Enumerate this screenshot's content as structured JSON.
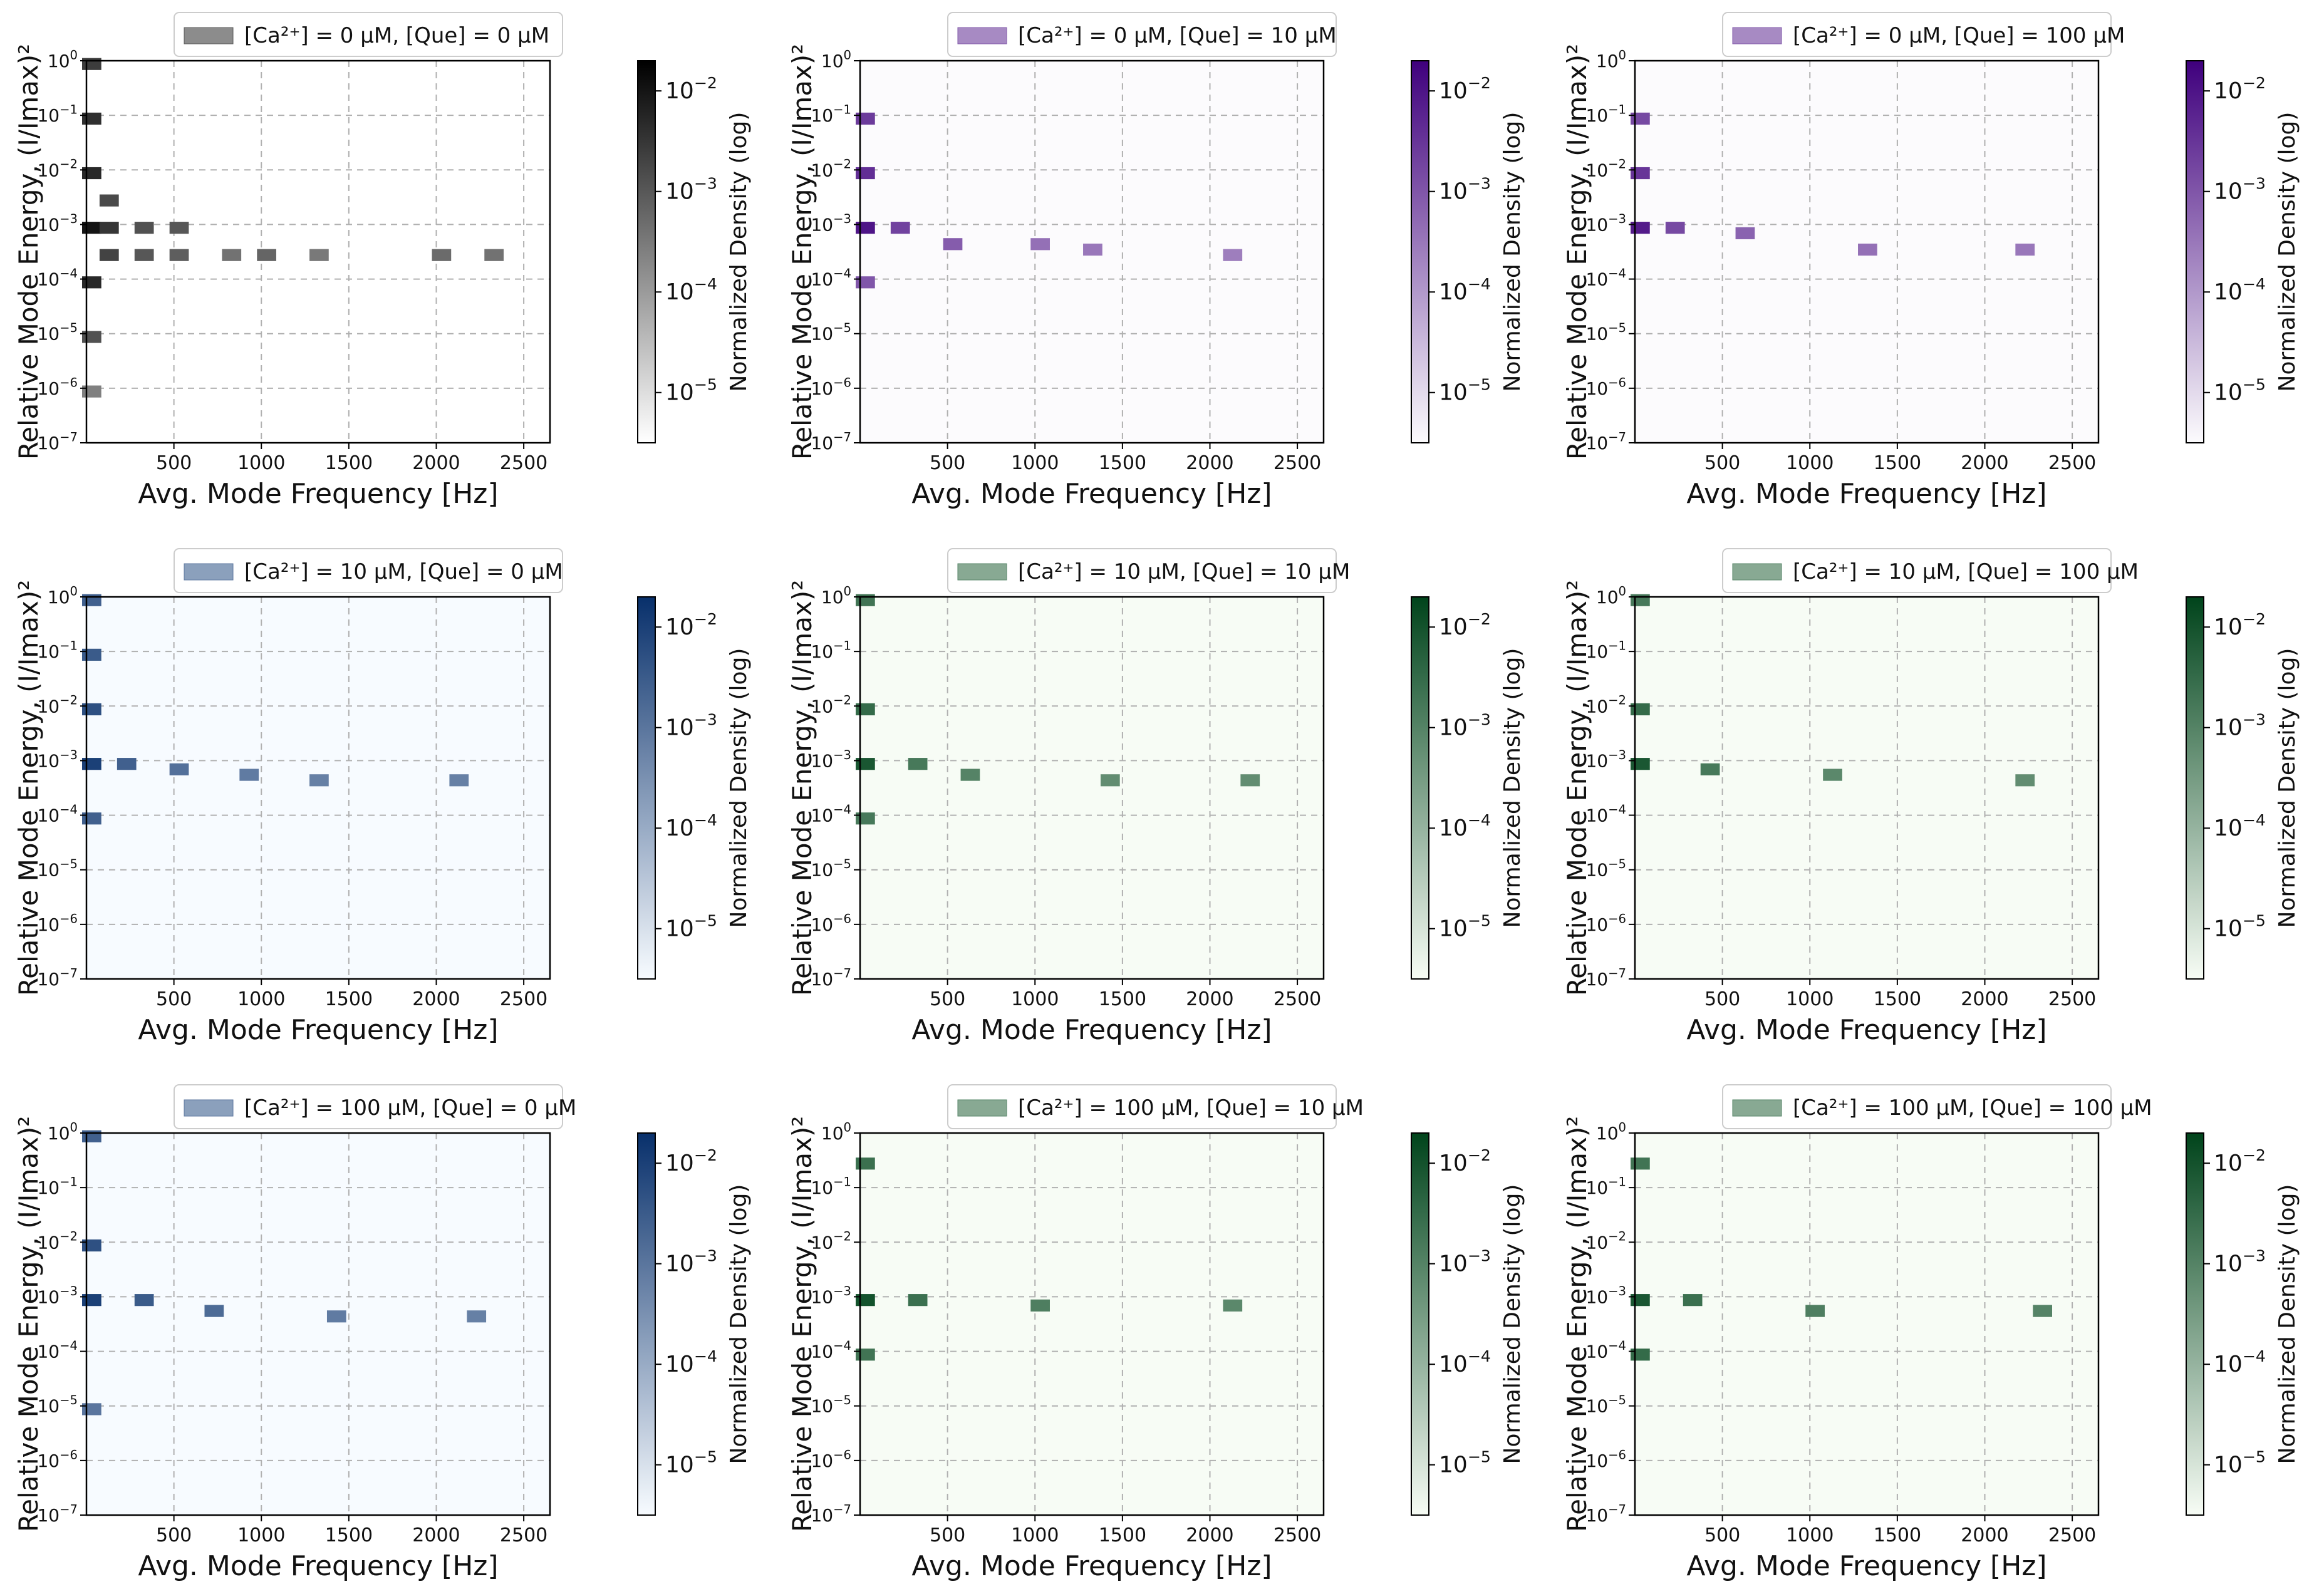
{
  "figure": {
    "layout": "3x3 grid of 2D histograms",
    "shared": {
      "xlabel": "Avg. Mode Frequency [Hz]",
      "ylabel": "Relative Mode Energy, (I/Imax)²",
      "colorbar_label": "Normalized Density (log)",
      "x_ticks": [
        500,
        1000,
        1500,
        2000,
        2500
      ],
      "y_tick_exponents": [
        -7,
        -6,
        -5,
        -4,
        -3,
        -2,
        -1,
        0
      ],
      "colorbar_tick_exponents": [
        -5,
        -4,
        -3,
        -2
      ]
    }
  },
  "chart_data": [
    {
      "type": "heatmap",
      "legend": "[Ca²⁺] = 0 μM, [Que] = 0 μM",
      "xlabel": "Avg. Mode Frequency [Hz]",
      "ylabel": "Relative Mode Energy, (I/Imax)²",
      "xlim": [
        0,
        2650
      ],
      "ylim_log10": [
        -7,
        0
      ],
      "clim_log10": [
        -5.5,
        -1.7
      ],
      "colormap": "Greys",
      "cmap_low": "#ffffff",
      "cmap_high": "#000000",
      "cells": [
        {
          "x": 0,
          "y": 0,
          "log_density": -2.6
        },
        {
          "x": 0,
          "y": -1,
          "log_density": -2.4
        },
        {
          "x": 0,
          "y": -2,
          "log_density": -2.3
        },
        {
          "x": 0,
          "y": -3,
          "log_density": -2.0
        },
        {
          "x": 0,
          "y": -4,
          "log_density": -2.3
        },
        {
          "x": 0,
          "y": -5,
          "log_density": -2.9
        },
        {
          "x": 0,
          "y": -6,
          "log_density": -3.6
        },
        {
          "x": 100,
          "y": -2.5,
          "log_density": -2.8
        },
        {
          "x": 100,
          "y": -3,
          "log_density": -2.5
        },
        {
          "x": 100,
          "y": -3.5,
          "log_density": -2.7
        },
        {
          "x": 300,
          "y": -3,
          "log_density": -2.9
        },
        {
          "x": 300,
          "y": -3.5,
          "log_density": -3.0
        },
        {
          "x": 500,
          "y": -3,
          "log_density": -3.0
        },
        {
          "x": 500,
          "y": -3.5,
          "log_density": -3.1
        },
        {
          "x": 800,
          "y": -3.5,
          "log_density": -3.4
        },
        {
          "x": 1000,
          "y": -3.5,
          "log_density": -3.2
        },
        {
          "x": 1300,
          "y": -3.5,
          "log_density": -3.5
        },
        {
          "x": 2000,
          "y": -3.5,
          "log_density": -3.3
        },
        {
          "x": 2300,
          "y": -3.5,
          "log_density": -3.4
        }
      ]
    },
    {
      "type": "heatmap",
      "legend": "[Ca²⁺] = 0 μM, [Que] = 10 μM",
      "xlabel": "Avg. Mode Frequency [Hz]",
      "ylabel": "Relative Mode Energy, (I/Imax)²",
      "xlim": [
        0,
        2650
      ],
      "ylim_log10": [
        -7,
        0
      ],
      "clim_log10": [
        -5.5,
        -1.7
      ],
      "colormap": "Purples",
      "cmap_low": "#fcfbfd",
      "cmap_high": "#3f007d",
      "cells": [
        {
          "x": 0,
          "y": -1,
          "log_density": -2.6
        },
        {
          "x": 0,
          "y": -2,
          "log_density": -2.4
        },
        {
          "x": 0,
          "y": -3,
          "log_density": -2.0
        },
        {
          "x": 0,
          "y": -4,
          "log_density": -3.0
        },
        {
          "x": 200,
          "y": -3,
          "log_density": -2.7
        },
        {
          "x": 500,
          "y": -3.3,
          "log_density": -3.1
        },
        {
          "x": 1000,
          "y": -3.3,
          "log_density": -3.4
        },
        {
          "x": 1300,
          "y": -3.4,
          "log_density": -3.5
        },
        {
          "x": 2100,
          "y": -3.5,
          "log_density": -3.6
        }
      ]
    },
    {
      "type": "heatmap",
      "legend": "[Ca²⁺] = 0 μM, [Que] = 100 μM",
      "xlabel": "Avg. Mode Frequency [Hz]",
      "ylabel": "Relative Mode Energy, (I/Imax)²",
      "xlim": [
        0,
        2650
      ],
      "ylim_log10": [
        -7,
        0
      ],
      "clim_log10": [
        -5.5,
        -1.7
      ],
      "colormap": "Purples",
      "cmap_low": "#fcfbfd",
      "cmap_high": "#3f007d",
      "cells": [
        {
          "x": 0,
          "y": -1,
          "log_density": -2.8
        },
        {
          "x": 0,
          "y": -2,
          "log_density": -2.5
        },
        {
          "x": 0,
          "y": -3,
          "log_density": -2.1
        },
        {
          "x": 200,
          "y": -3,
          "log_density": -2.8
        },
        {
          "x": 600,
          "y": -3.1,
          "log_density": -3.2
        },
        {
          "x": 1300,
          "y": -3.4,
          "log_density": -3.4
        },
        {
          "x": 2200,
          "y": -3.4,
          "log_density": -3.5
        }
      ]
    },
    {
      "type": "heatmap",
      "legend": "[Ca²⁺] = 10 μM, [Que] = 0 μM",
      "xlabel": "Avg. Mode Frequency [Hz]",
      "ylabel": "Relative Mode Energy, (I/Imax)²",
      "xlim": [
        0,
        2650
      ],
      "ylim_log10": [
        -7,
        0
      ],
      "clim_log10": [
        -5.5,
        -1.7
      ],
      "colormap": "Blues",
      "cmap_low": "#f7fbff",
      "cmap_high": "#08306b",
      "cells": [
        {
          "x": 0,
          "y": 0,
          "log_density": -2.6
        },
        {
          "x": 0,
          "y": -1,
          "log_density": -2.5
        },
        {
          "x": 0,
          "y": -2,
          "log_density": -2.3
        },
        {
          "x": 0,
          "y": -3,
          "log_density": -2.0
        },
        {
          "x": 0,
          "y": -4,
          "log_density": -2.6
        },
        {
          "x": 200,
          "y": -3,
          "log_density": -2.6
        },
        {
          "x": 500,
          "y": -3.1,
          "log_density": -2.9
        },
        {
          "x": 900,
          "y": -3.2,
          "log_density": -3.1
        },
        {
          "x": 1300,
          "y": -3.3,
          "log_density": -3.2
        },
        {
          "x": 2100,
          "y": -3.3,
          "log_density": -3.2
        }
      ]
    },
    {
      "type": "heatmap",
      "legend": "[Ca²⁺] = 10 μM, [Que] = 10 μM",
      "xlabel": "Avg. Mode Frequency [Hz]",
      "ylabel": "Relative Mode Energy, (I/Imax)²",
      "xlim": [
        0,
        2650
      ],
      "ylim_log10": [
        -7,
        0
      ],
      "clim_log10": [
        -5.5,
        -1.7
      ],
      "colormap": "Greens",
      "cmap_low": "#f7fcf5",
      "cmap_high": "#00441b",
      "cells": [
        {
          "x": 0,
          "y": 0,
          "log_density": -2.7
        },
        {
          "x": 0,
          "y": -2,
          "log_density": -2.5
        },
        {
          "x": 0,
          "y": -3,
          "log_density": -2.1
        },
        {
          "x": 0,
          "y": -4,
          "log_density": -2.8
        },
        {
          "x": 300,
          "y": -3,
          "log_density": -2.8
        },
        {
          "x": 600,
          "y": -3.2,
          "log_density": -3.0
        },
        {
          "x": 1400,
          "y": -3.3,
          "log_density": -3.2
        },
        {
          "x": 2200,
          "y": -3.3,
          "log_density": -3.2
        }
      ]
    },
    {
      "type": "heatmap",
      "legend": "[Ca²⁺] = 10 μM, [Que] = 100 μM",
      "xlabel": "Avg. Mode Frequency [Hz]",
      "ylabel": "Relative Mode Energy, (I/Imax)²",
      "xlim": [
        0,
        2650
      ],
      "ylim_log10": [
        -7,
        0
      ],
      "clim_log10": [
        -5.5,
        -1.7
      ],
      "colormap": "Greens",
      "cmap_low": "#f7fcf5",
      "cmap_high": "#00441b",
      "cells": [
        {
          "x": 0,
          "y": 0,
          "log_density": -2.8
        },
        {
          "x": 0,
          "y": -2,
          "log_density": -2.5
        },
        {
          "x": 0,
          "y": -3,
          "log_density": -2.1
        },
        {
          "x": 400,
          "y": -3.1,
          "log_density": -2.8
        },
        {
          "x": 1100,
          "y": -3.2,
          "log_density": -3.1
        },
        {
          "x": 2200,
          "y": -3.3,
          "log_density": -3.2
        }
      ]
    },
    {
      "type": "heatmap",
      "legend": "[Ca²⁺] = 100 μM, [Que] = 0 μM",
      "xlabel": "Avg. Mode Frequency [Hz]",
      "ylabel": "Relative Mode Energy, (I/Imax)²",
      "xlim": [
        0,
        2650
      ],
      "ylim_log10": [
        -7,
        0
      ],
      "clim_log10": [
        -5.5,
        -1.7
      ],
      "colormap": "Blues",
      "cmap_low": "#f7fbff",
      "cmap_high": "#08306b",
      "cells": [
        {
          "x": 0,
          "y": 0,
          "log_density": -2.6
        },
        {
          "x": 0,
          "y": -2,
          "log_density": -2.3
        },
        {
          "x": 0,
          "y": -3,
          "log_density": -2.0
        },
        {
          "x": 0,
          "y": -5,
          "log_density": -3.0
        },
        {
          "x": 300,
          "y": -3,
          "log_density": -2.5
        },
        {
          "x": 700,
          "y": -3.2,
          "log_density": -2.8
        },
        {
          "x": 1400,
          "y": -3.3,
          "log_density": -3.1
        },
        {
          "x": 2200,
          "y": -3.3,
          "log_density": -3.2
        }
      ]
    },
    {
      "type": "heatmap",
      "legend": "[Ca²⁺] = 100 μM, [Que] = 10 μM",
      "xlabel": "Avg. Mode Frequency [Hz]",
      "ylabel": "Relative Mode Energy, (I/Imax)²",
      "xlim": [
        0,
        2650
      ],
      "ylim_log10": [
        -7,
        0
      ],
      "clim_log10": [
        -5.5,
        -1.7
      ],
      "colormap": "Greens",
      "cmap_low": "#f7fcf5",
      "cmap_high": "#00441b",
      "cells": [
        {
          "x": 0,
          "y": -0.5,
          "log_density": -2.6
        },
        {
          "x": 0,
          "y": -3,
          "log_density": -2.0
        },
        {
          "x": 0,
          "y": -4,
          "log_density": -2.7
        },
        {
          "x": 300,
          "y": -3,
          "log_density": -2.6
        },
        {
          "x": 1000,
          "y": -3.1,
          "log_density": -2.9
        },
        {
          "x": 2100,
          "y": -3.1,
          "log_density": -3.1
        }
      ]
    },
    {
      "type": "heatmap",
      "legend": "[Ca²⁺] = 100 μM, [Que] = 100 μM",
      "xlabel": "Avg. Mode Frequency [Hz]",
      "ylabel": "Relative Mode Energy, (I/Imax)²",
      "xlim": [
        0,
        2650
      ],
      "ylim_log10": [
        -7,
        0
      ],
      "clim_log10": [
        -5.5,
        -1.7
      ],
      "colormap": "Greens",
      "cmap_low": "#f7fcf5",
      "cmap_high": "#00441b",
      "cells": [
        {
          "x": 0,
          "y": -0.5,
          "log_density": -2.7
        },
        {
          "x": 0,
          "y": -3,
          "log_density": -2.1
        },
        {
          "x": 0,
          "y": -4,
          "log_density": -2.5
        },
        {
          "x": 300,
          "y": -3,
          "log_density": -2.6
        },
        {
          "x": 1000,
          "y": -3.2,
          "log_density": -2.9
        },
        {
          "x": 2300,
          "y": -3.2,
          "log_density": -3.0
        }
      ]
    }
  ]
}
